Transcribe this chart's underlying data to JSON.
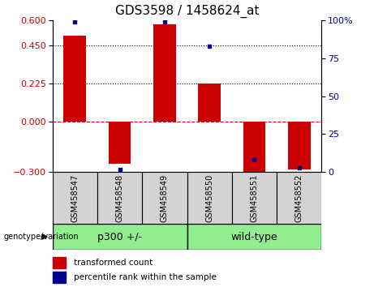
{
  "title": "GDS3598 / 1458624_at",
  "samples": [
    "GSM458547",
    "GSM458548",
    "GSM458549",
    "GSM458550",
    "GSM458551",
    "GSM458552"
  ],
  "red_values": [
    0.51,
    -0.25,
    0.575,
    0.225,
    -0.31,
    -0.285
  ],
  "blue_percentiles": [
    99,
    2,
    99,
    83,
    8,
    3
  ],
  "ylim_left": [
    -0.3,
    0.6
  ],
  "ylim_right": [
    0,
    100
  ],
  "yticks_left": [
    -0.3,
    0,
    0.225,
    0.45,
    0.6
  ],
  "yticks_right": [
    0,
    25,
    50,
    75,
    100
  ],
  "hlines": [
    0.225,
    0.45
  ],
  "group1_label": "p300 +/-",
  "group2_label": "wild-type",
  "group1_indices": [
    0,
    1,
    2
  ],
  "group2_indices": [
    3,
    4,
    5
  ],
  "xlabel_bottom": "genotype/variation",
  "legend_red": "transformed count",
  "legend_blue": "percentile rank within the sample",
  "bar_width": 0.5,
  "red_color": "#cc0000",
  "blue_color": "#000099",
  "group_color": "#90ee90",
  "sample_bg_color": "#d3d3d3",
  "title_fontsize": 11,
  "tick_fontsize": 8,
  "sample_fontsize": 7,
  "group_fontsize": 9,
  "legend_fontsize": 7.5
}
